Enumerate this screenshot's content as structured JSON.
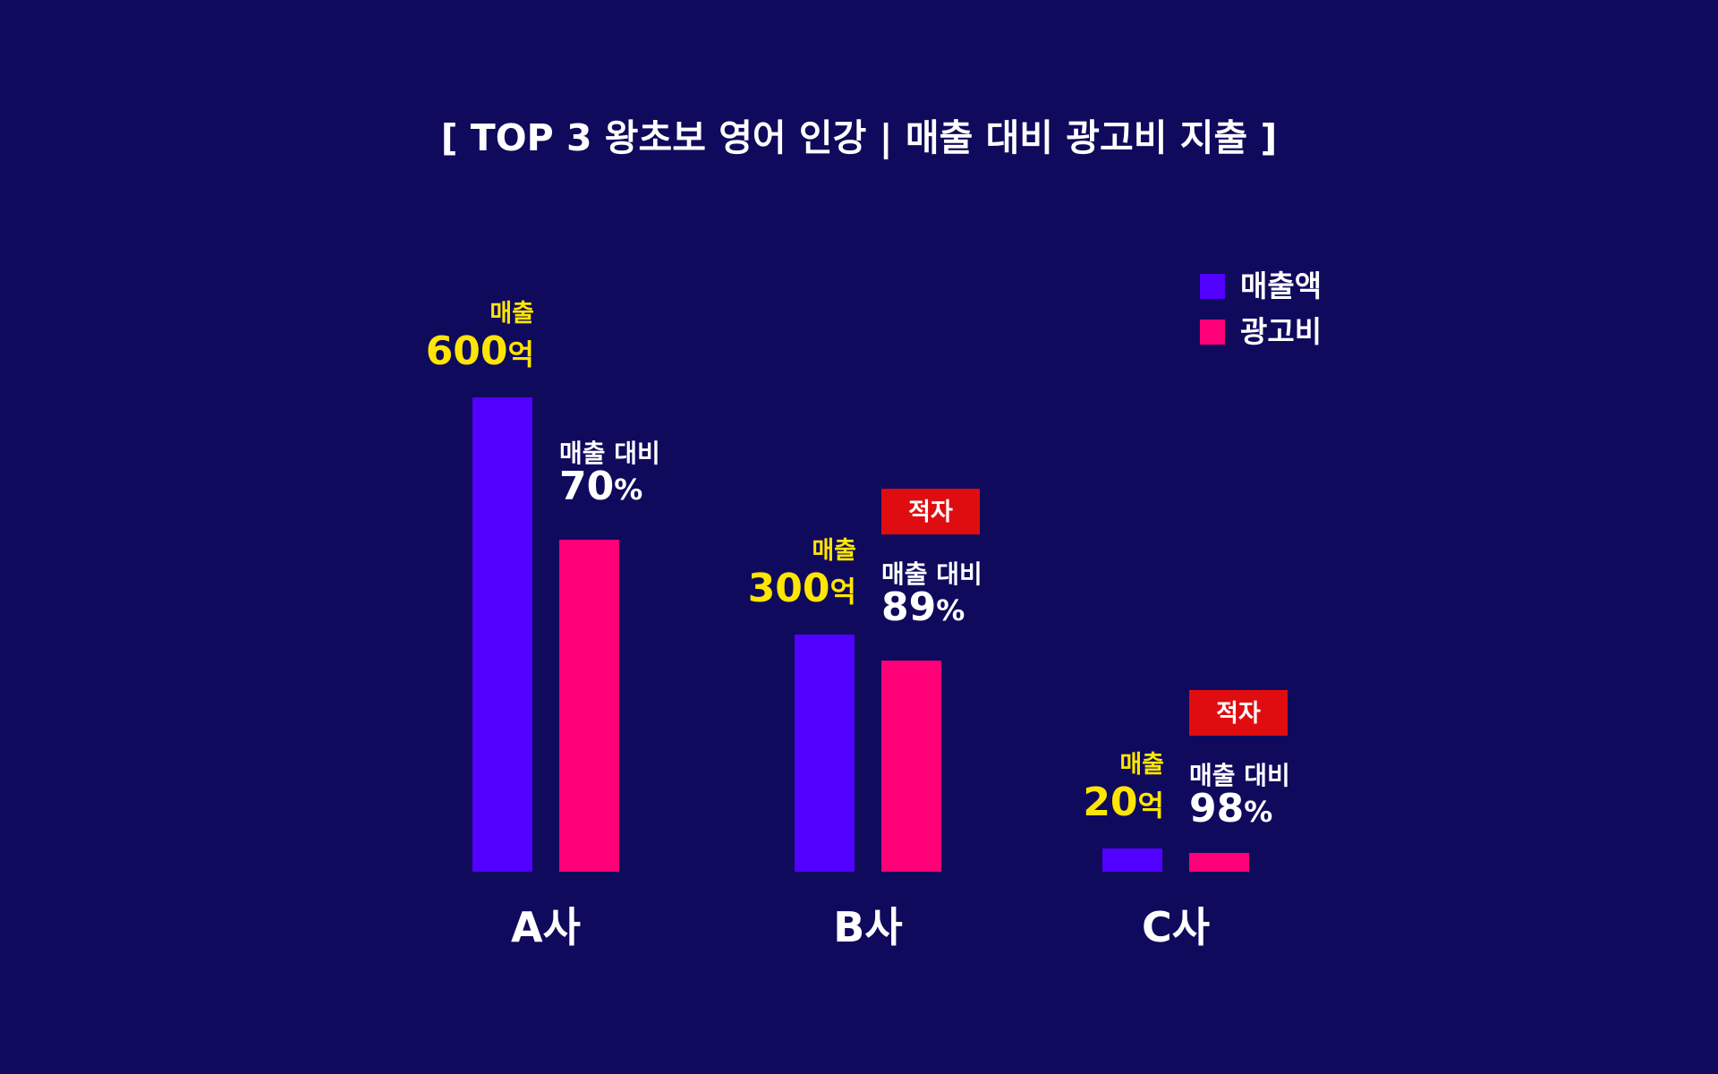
{
  "colors": {
    "background": "#100a5c",
    "revenue": "#5200ff",
    "ad": "#ff0078",
    "revenue_label": "#ffe600",
    "deficit_badge": "#e00d10"
  },
  "chart_data": {
    "type": "bar",
    "title": "[ TOP 3 왕초보 영어 인강 | 매출 대비 광고비 지출 ]",
    "categories": [
      "A사",
      "B사",
      "C사"
    ],
    "series": [
      {
        "name": "매출액",
        "values": [
          600,
          300,
          20
        ]
      },
      {
        "name": "광고비",
        "values": [
          420,
          267,
          19.6
        ]
      }
    ],
    "unit": "억",
    "legend_position": "top-right",
    "grid": false,
    "annotations": {
      "revenue_caption": "매출",
      "ratio_caption": "매출 대비",
      "ratio_unit": "%",
      "ratios": [
        70,
        89,
        98
      ],
      "deficit_label": "적자",
      "deficit": [
        false,
        true,
        true
      ]
    }
  }
}
